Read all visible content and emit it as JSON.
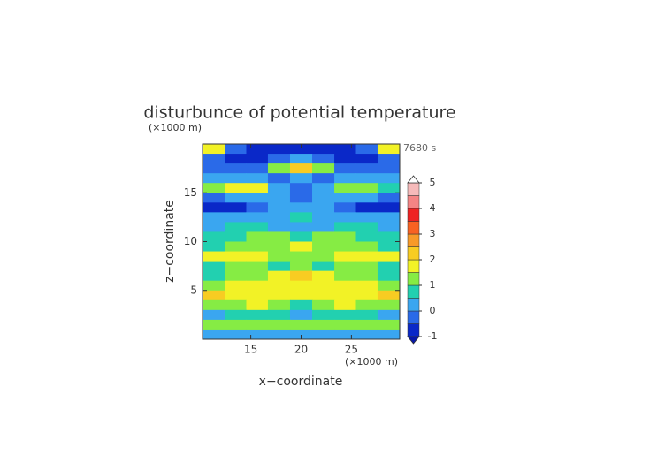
{
  "chart_data": {
    "type": "contour",
    "title": "disturbunce of potential temperature",
    "x_label": "x−coordinate",
    "y_label": "z−coordinate",
    "x_unit": "(×1000 m)",
    "y_unit": "(×1000 m)",
    "time_label": "7680 s",
    "xlim": [
      10.2,
      29.8
    ],
    "ylim": [
      0,
      20
    ],
    "xticks": [
      15,
      20,
      25
    ],
    "yticks": [
      5,
      10,
      15
    ],
    "x": [
      11.3,
      13.5,
      15.6,
      17.8,
      20,
      22.2,
      24.4,
      26.5,
      28.7
    ],
    "y": [
      19.5,
      18.5,
      17.5,
      16.5,
      15.5,
      14.5,
      13.5,
      12.5,
      11.5,
      10.5,
      9.5,
      8.5,
      7.5,
      6.5,
      5.5,
      4.5,
      3.5,
      2.5,
      1.5,
      0.5
    ],
    "z": [
      [
        1.8,
        -0.4,
        -0.7,
        -0.7,
        -0.6,
        -0.7,
        -0.7,
        -0.4,
        1.8
      ],
      [
        -0.3,
        -0.6,
        -0.6,
        -0.3,
        0.2,
        -0.3,
        -0.6,
        -0.6,
        -0.3
      ],
      [
        -0.2,
        -0.3,
        -0.2,
        1.2,
        2.3,
        1.2,
        -0.2,
        -0.3,
        -0.2
      ],
      [
        0.2,
        0.3,
        0.2,
        -0.2,
        0.2,
        -0.2,
        0.2,
        0.3,
        0.2
      ],
      [
        1.2,
        1.8,
        1.6,
        0.3,
        -0.3,
        0.3,
        1.3,
        1.4,
        0.8
      ],
      [
        -0.3,
        0.3,
        0.4,
        0.2,
        -0.2,
        0.2,
        0.3,
        0.2,
        -0.3
      ],
      [
        -0.7,
        -0.6,
        -0.2,
        0.3,
        0.4,
        0.3,
        -0.2,
        -0.6,
        -0.7
      ],
      [
        0.3,
        0.2,
        0.3,
        0.4,
        0.5,
        0.4,
        0.3,
        0.2,
        0.3
      ],
      [
        0.4,
        0.6,
        0.5,
        0.4,
        0.3,
        0.4,
        0.5,
        0.6,
        0.4
      ],
      [
        0.7,
        0.9,
        1.1,
        1.3,
        0.8,
        1.3,
        1.1,
        0.9,
        0.7
      ],
      [
        0.8,
        1.2,
        1.4,
        1.3,
        1.6,
        1.3,
        1.4,
        1.2,
        0.8
      ],
      [
        1.6,
        1.8,
        1.9,
        1.3,
        1.2,
        1.3,
        1.9,
        1.8,
        1.6
      ],
      [
        0.8,
        1.2,
        1.3,
        0.9,
        1.4,
        0.9,
        1.3,
        1.2,
        0.8
      ],
      [
        0.6,
        1.3,
        1.4,
        1.7,
        2.4,
        1.7,
        1.4,
        1.3,
        0.6
      ],
      [
        1.3,
        1.7,
        1.8,
        1.9,
        1.8,
        1.9,
        1.8,
        1.7,
        1.3
      ],
      [
        2.4,
        1.9,
        1.8,
        1.7,
        1.6,
        1.7,
        1.8,
        1.9,
        2.4
      ],
      [
        1.1,
        1.4,
        1.6,
        1.3,
        0.9,
        1.3,
        1.6,
        1.4,
        1.1
      ],
      [
        0.4,
        0.7,
        0.8,
        0.6,
        0.4,
        0.6,
        0.8,
        0.7,
        0.4
      ],
      [
        1.2,
        1.3,
        1.4,
        1.2,
        1.0,
        1.2,
        1.4,
        1.3,
        1.2
      ],
      [
        0.2,
        0.3,
        0.4,
        0.3,
        0.1,
        0.3,
        0.4,
        0.3,
        0.2
      ]
    ],
    "levels": [
      -1,
      -0.5,
      0,
      0.5,
      1,
      1.5,
      2,
      2.5,
      3,
      3.5,
      4,
      4.5,
      5
    ],
    "colors": [
      "#0a28c8",
      "#2a6ae8",
      "#3aa6f0",
      "#22d0b0",
      "#86ec44",
      "#f2f226",
      "#f8cc22",
      "#f89a28",
      "#f86222",
      "#ee2222",
      "#f48484",
      "#f6baba"
    ],
    "under_color": "#0818a8",
    "over_color": "#ffffff",
    "colorbar_ticks": [
      -1,
      0,
      1,
      2,
      3,
      4,
      5
    ]
  }
}
